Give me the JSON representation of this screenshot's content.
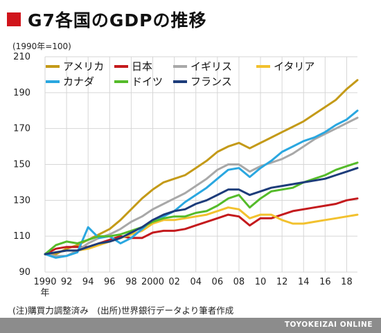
{
  "header": {
    "title": "G7各国のGDPの推移",
    "unit": "(1990年=100)"
  },
  "footer": {
    "source": "(注)購買力調整済み　(出所)世界銀行データより筆者作成",
    "brand": "TOYOKEIZAI ONLINE"
  },
  "chart_data": {
    "type": "line",
    "title": "G7各国のGDPの推移",
    "xlabel": "年",
    "ylabel": "(1990年=100)",
    "ylim": [
      90,
      210
    ],
    "xlim": [
      1990,
      2019
    ],
    "y_ticks": [
      90,
      110,
      130,
      150,
      170,
      190,
      210
    ],
    "x_ticks": [
      {
        "value": 1990,
        "label": "1990"
      },
      {
        "value": 1992,
        "label": "92"
      },
      {
        "value": 1994,
        "label": "94"
      },
      {
        "value": 1996,
        "label": "96"
      },
      {
        "value": 1998,
        "label": "98"
      },
      {
        "value": 2000,
        "label": "2000"
      },
      {
        "value": 2002,
        "label": "02"
      },
      {
        "value": 2004,
        "label": "04"
      },
      {
        "value": 2006,
        "label": "06"
      },
      {
        "value": 2008,
        "label": "08"
      },
      {
        "value": 2010,
        "label": "10"
      },
      {
        "value": 2012,
        "label": "12"
      },
      {
        "value": 2014,
        "label": "14"
      },
      {
        "value": 2016,
        "label": "16"
      },
      {
        "value": 2018,
        "label": "18"
      }
    ],
    "x_unit_label": "年",
    "grid": true,
    "legend": "top-left",
    "x": [
      1990,
      1991,
      1992,
      1993,
      1994,
      1995,
      1996,
      1997,
      1998,
      1999,
      2000,
      2001,
      2002,
      2003,
      2004,
      2005,
      2006,
      2007,
      2008,
      2009,
      2010,
      2011,
      2012,
      2013,
      2014,
      2015,
      2016,
      2017,
      2018,
      2019
    ],
    "series": [
      {
        "name": "アメリカ",
        "color": "#c49a18",
        "values": [
          100,
          100,
          103,
          105,
          108,
          111,
          114,
          119,
          125,
          131,
          136,
          140,
          142,
          144,
          148,
          152,
          157,
          160,
          162,
          159,
          162,
          165,
          168,
          171,
          174,
          178,
          182,
          186,
          192,
          197
        ]
      },
      {
        "name": "日本",
        "color": "#c41a1d",
        "values": [
          100,
          103,
          104,
          104,
          104,
          106,
          108,
          110,
          109,
          109,
          112,
          113,
          113,
          114,
          116,
          118,
          120,
          122,
          121,
          116,
          120,
          120,
          122,
          124,
          125,
          126,
          127,
          128,
          130,
          131
        ]
      },
      {
        "name": "イギリス",
        "color": "#a8a8a8",
        "values": [
          100,
          99,
          99,
          102,
          106,
          109,
          111,
          114,
          118,
          121,
          125,
          128,
          131,
          134,
          138,
          142,
          147,
          150,
          150,
          146,
          149,
          151,
          153,
          156,
          160,
          164,
          167,
          170,
          173,
          176
        ]
      },
      {
        "name": "イタリア",
        "color": "#f2c12e",
        "values": [
          100,
          101,
          102,
          102,
          103,
          105,
          107,
          109,
          111,
          113,
          117,
          119,
          119,
          120,
          121,
          122,
          124,
          126,
          125,
          120,
          122,
          122,
          119,
          117,
          117,
          118,
          119,
          120,
          121,
          122
        ]
      },
      {
        "name": "カナダ",
        "color": "#2aa7e0",
        "values": [
          100,
          98,
          99,
          101,
          115,
          109,
          110,
          106,
          109,
          114,
          119,
          121,
          124,
          129,
          133,
          137,
          142,
          147,
          148,
          143,
          148,
          152,
          157,
          160,
          163,
          165,
          168,
          172,
          175,
          180
        ]
      },
      {
        "name": "ドイツ",
        "color": "#55bb2a",
        "values": [
          100,
          105,
          107,
          106,
          108,
          110,
          110,
          111,
          113,
          115,
          118,
          120,
          121,
          121,
          123,
          124,
          127,
          131,
          133,
          126,
          131,
          135,
          136,
          137,
          140,
          142,
          144,
          147,
          149,
          151
        ]
      },
      {
        "name": "フランス",
        "color": "#1d3c7a",
        "values": [
          100,
          101,
          102,
          102,
          104,
          106,
          107,
          109,
          112,
          115,
          119,
          122,
          124,
          125,
          128,
          130,
          133,
          136,
          136,
          133,
          135,
          137,
          138,
          139,
          140,
          141,
          142,
          144,
          146,
          148
        ]
      }
    ]
  }
}
